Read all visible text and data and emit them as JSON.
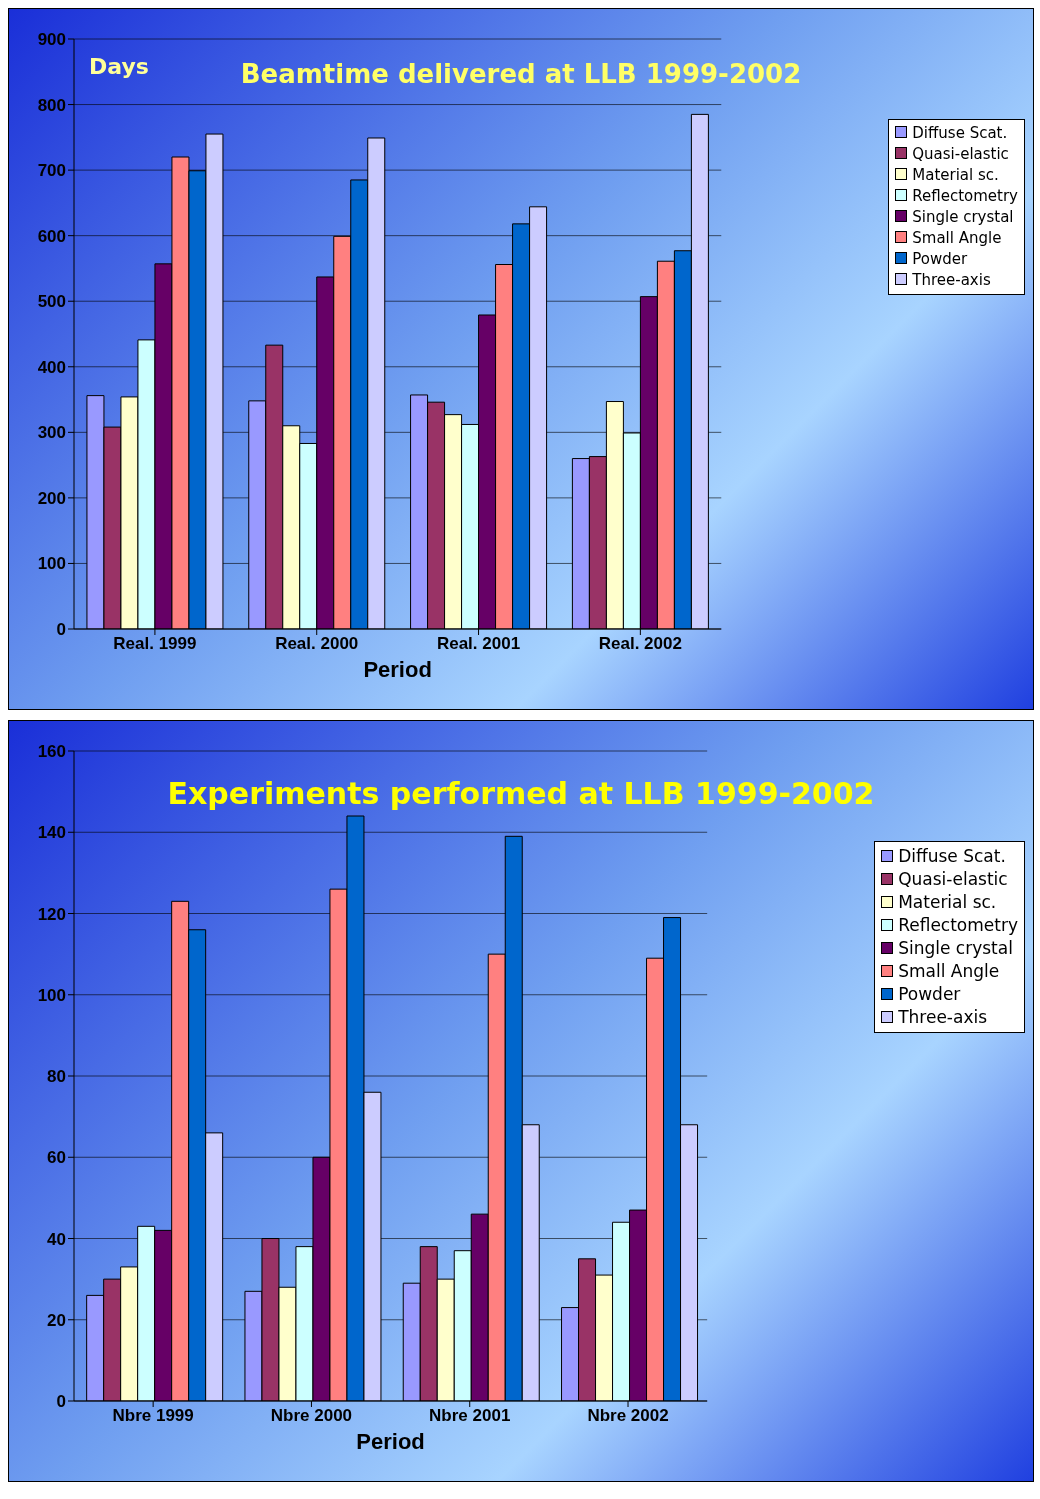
{
  "chart_data": [
    {
      "type": "bar",
      "title": "Beamtime delivered at LLB 1999-2002",
      "ylabel": "Days",
      "xlabel": "Period",
      "categories": [
        "Real. 1999",
        "Real. 2000",
        "Real. 2001",
        "Real. 2002"
      ],
      "series": [
        {
          "name": "Diffuse Scat.",
          "color": "#9999ff",
          "values": [
            356,
            348,
            357,
            260
          ]
        },
        {
          "name": "Quasi-elastic",
          "color": "#993366",
          "values": [
            308,
            433,
            346,
            263
          ]
        },
        {
          "name": "Material sc.",
          "color": "#ffffcc",
          "values": [
            354,
            310,
            327,
            347
          ]
        },
        {
          "name": "Reflectometry",
          "color": "#ccffff",
          "values": [
            441,
            283,
            312,
            299
          ]
        },
        {
          "name": "Single crystal",
          "color": "#660066",
          "values": [
            557,
            537,
            479,
            507
          ]
        },
        {
          "name": "Small Angle",
          "color": "#ff8080",
          "values": [
            720,
            599,
            556,
            561
          ]
        },
        {
          "name": "Powder",
          "color": "#0066cc",
          "values": [
            699,
            685,
            618,
            577
          ]
        },
        {
          "name": "Three-axis",
          "color": "#ccccff",
          "values": [
            755,
            749,
            644,
            785
          ]
        }
      ],
      "ylim": [
        0,
        900
      ],
      "yticks": [
        0,
        100,
        200,
        300,
        400,
        500,
        600,
        700,
        800,
        900
      ],
      "grid": "y",
      "legend": "top right"
    },
    {
      "type": "bar",
      "title": "Experiments performed at LLB 1999-2002",
      "xlabel": "Period",
      "categories": [
        "Nbre 1999",
        "Nbre  2000",
        "Nbre  2001",
        "Nbre 2002"
      ],
      "series": [
        {
          "name": "Diffuse Scat.",
          "color": "#9999ff",
          "values": [
            26,
            27,
            29,
            23
          ]
        },
        {
          "name": "Quasi-elastic",
          "color": "#993366",
          "values": [
            30,
            40,
            38,
            35
          ]
        },
        {
          "name": "Material sc.",
          "color": "#ffffcc",
          "values": [
            33,
            28,
            30,
            31
          ]
        },
        {
          "name": "Reflectometry",
          "color": "#ccffff",
          "values": [
            43,
            38,
            37,
            44
          ]
        },
        {
          "name": "Single crystal",
          "color": "#660066",
          "values": [
            42,
            60,
            46,
            47
          ]
        },
        {
          "name": "Small Angle",
          "color": "#ff8080",
          "values": [
            123,
            126,
            110,
            109
          ]
        },
        {
          "name": "Powder",
          "color": "#0066cc",
          "values": [
            116,
            144,
            139,
            119
          ]
        },
        {
          "name": "Three-axis",
          "color": "#ccccff",
          "values": [
            66,
            76,
            68,
            68
          ]
        }
      ],
      "ylim": [
        0,
        160
      ],
      "yticks": [
        0,
        20,
        40,
        60,
        80,
        100,
        120,
        140,
        160
      ],
      "grid": "y",
      "legend": "top right"
    }
  ]
}
